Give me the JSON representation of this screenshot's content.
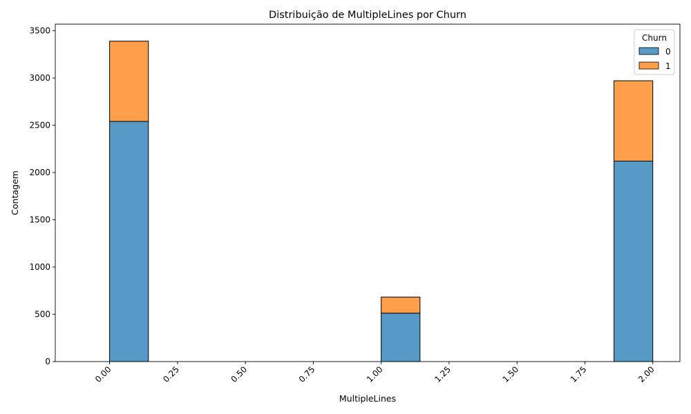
{
  "chart_data": {
    "type": "bar",
    "stacked": true,
    "title": "Distribuição de MultipleLines por Churn",
    "xlabel": "MultipleLines",
    "ylabel": "Contagem",
    "xlim": [
      -0.2,
      2.1
    ],
    "ylim": [
      0,
      3570
    ],
    "x_ticks": [
      0.0,
      0.25,
      0.5,
      0.75,
      1.0,
      1.25,
      1.5,
      1.75,
      2.0
    ],
    "x_tick_labels": [
      "0.00",
      "0.25",
      "0.50",
      "0.75",
      "1.00",
      "1.25",
      "1.50",
      "1.75",
      "2.00"
    ],
    "y_ticks": [
      0,
      500,
      1000,
      1500,
      2000,
      2500,
      3000,
      3500
    ],
    "y_tick_labels": [
      "0",
      "500",
      "1000",
      "1500",
      "2000",
      "2500",
      "3000",
      "3500"
    ],
    "bin_edges": [
      0.0,
      0.142857,
      0.285714,
      0.428571,
      0.571429,
      0.714286,
      0.857143,
      1.0,
      1.142857,
      1.285714,
      1.428571,
      1.571429,
      1.714286,
      1.857143,
      2.0
    ],
    "series": [
      {
        "name": "0",
        "color": "#5799c7",
        "values": [
          2541,
          0,
          0,
          0,
          0,
          0,
          0,
          512,
          0,
          0,
          0,
          0,
          0,
          2121
        ]
      },
      {
        "name": "1",
        "color": "#ff9f4a",
        "values": [
          849,
          0,
          0,
          0,
          0,
          0,
          0,
          170,
          0,
          0,
          0,
          0,
          0,
          850
        ]
      }
    ],
    "totals": [
      3390,
      0,
      0,
      0,
      0,
      0,
      0,
      682,
      0,
      0,
      0,
      0,
      0,
      2971
    ],
    "grid": false,
    "legend": {
      "title": "Churn",
      "position": "top-right",
      "entries": [
        "0",
        "1"
      ]
    }
  }
}
